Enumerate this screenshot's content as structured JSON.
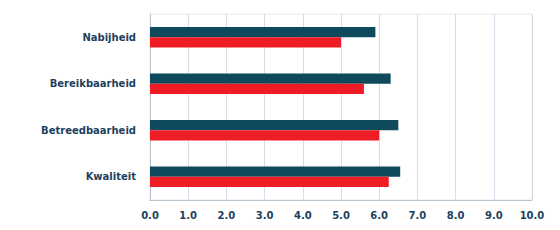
{
  "chart_data": {
    "type": "bar",
    "orientation": "horizontal",
    "categories": [
      "Nabijheid",
      "Bereikbaarheid",
      "Betreedbaarheid",
      "Kwaliteit"
    ],
    "series": [
      {
        "color": "#0e4a5c",
        "values": [
          5.9,
          6.3,
          6.5,
          6.55
        ]
      },
      {
        "color": "#ee1c24",
        "values": [
          5.0,
          5.6,
          6.0,
          6.25
        ]
      }
    ],
    "xlim": [
      0,
      10
    ],
    "xticks": [
      {
        "value": 0,
        "label": "0.0"
      },
      {
        "value": 1,
        "label": "1.0"
      },
      {
        "value": 2,
        "label": "2.0"
      },
      {
        "value": 3,
        "label": "3.0"
      },
      {
        "value": 4,
        "label": "4.0"
      },
      {
        "value": 5,
        "label": "5.0"
      },
      {
        "value": 6,
        "label": "6.0"
      },
      {
        "value": 7,
        "label": "7.0"
      },
      {
        "value": 8,
        "label": "8.0"
      },
      {
        "value": 9,
        "label": "9.0"
      },
      {
        "value": 10,
        "label": "10.0"
      }
    ],
    "grid": true
  }
}
